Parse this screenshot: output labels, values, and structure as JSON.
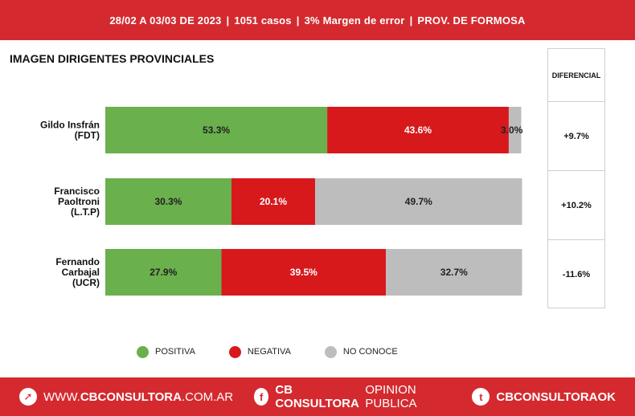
{
  "header": {
    "date_range": "28/02 A 03/03 DE 2023",
    "cases": "1051 casos",
    "margin": "3% Margen de error",
    "province": "PROV. DE FORMOSA",
    "separator": "|"
  },
  "chart_data": {
    "type": "bar",
    "stacked": true,
    "orientation": "horizontal",
    "title": "IMAGEN DIRIGENTES PROVINCIALES",
    "categories": [
      [
        "Gildo Insfrán",
        "(FDT)"
      ],
      [
        "Francisco",
        "Paoltroni",
        "(L.T.P)"
      ],
      [
        "Fernando",
        "Carbajal",
        "(UCR)"
      ]
    ],
    "series": [
      {
        "name": "POSITIVA",
        "color": "#6ab04c",
        "values": [
          53.3,
          30.3,
          27.9
        ],
        "labels": [
          "53.3%",
          "30.3%",
          "27.9%"
        ]
      },
      {
        "name": "NEGATIVA",
        "color": "#d7191c",
        "values": [
          43.6,
          20.1,
          39.5
        ],
        "labels": [
          "43.6%",
          "20.1%",
          "39.5%"
        ]
      },
      {
        "name": "NO CONOCE",
        "color": "#bdbdbd",
        "values": [
          3.0,
          49.7,
          32.7
        ],
        "labels": [
          "3.0%",
          "49.7%",
          "32.7%"
        ]
      }
    ],
    "xlim": [
      0,
      100
    ],
    "legend": "bottom"
  },
  "diferencial": {
    "header": "DIFERENCIAL",
    "values": [
      "+9.7%",
      "+10.2%",
      "-11.6%"
    ]
  },
  "footer": {
    "web_prefix": "WWW.",
    "web_bold": "CBCONSULTORA",
    "web_suffix": ".COM.AR",
    "facebook_bold": "CB CONSULTORA",
    "facebook_light": "OPINION PUBLICA",
    "twitter": "CBCONSULTORAOK"
  },
  "colors": {
    "brand_red": "#d42a2f"
  }
}
